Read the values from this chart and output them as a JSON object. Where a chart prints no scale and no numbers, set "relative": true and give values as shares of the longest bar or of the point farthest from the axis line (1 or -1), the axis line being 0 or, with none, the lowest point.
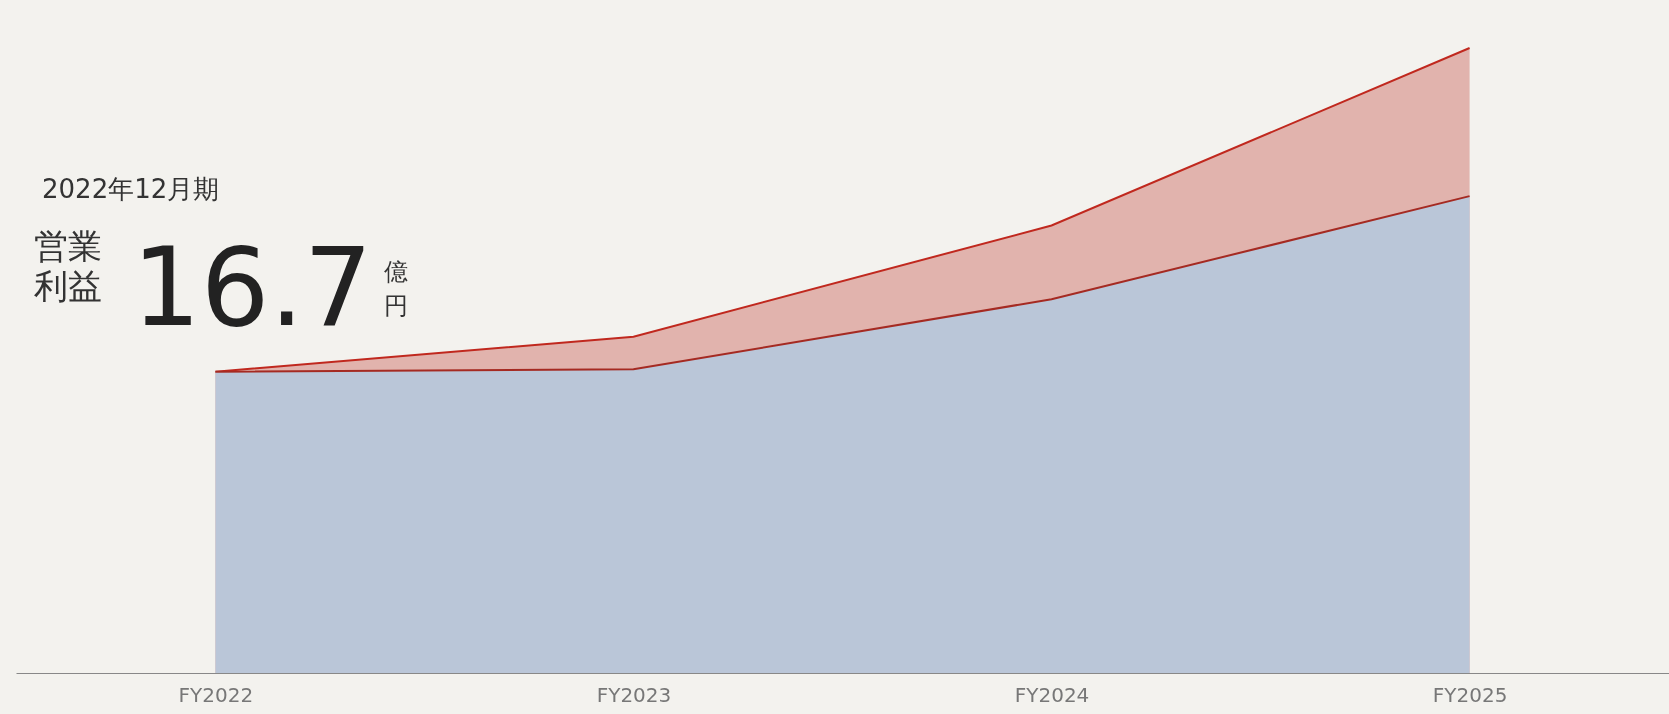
{
  "chart_data": {
    "type": "area",
    "relative": true,
    "categories": [
      "FY2022",
      "FY2023",
      "FY2024",
      "FY2025"
    ],
    "series": [
      {
        "color": "#e1b3ad",
        "values": [
          0.482,
          0.538,
          0.716,
          1
        ]
      },
      {
        "color": "#bac6d8",
        "values": [
          0.482,
          0.486,
          0.598,
          0.763
        ]
      }
    ],
    "annotations": [
      "2022年12月期",
      "営業利益",
      "16.7",
      "億円"
    ],
    "grid": false
  }
}
